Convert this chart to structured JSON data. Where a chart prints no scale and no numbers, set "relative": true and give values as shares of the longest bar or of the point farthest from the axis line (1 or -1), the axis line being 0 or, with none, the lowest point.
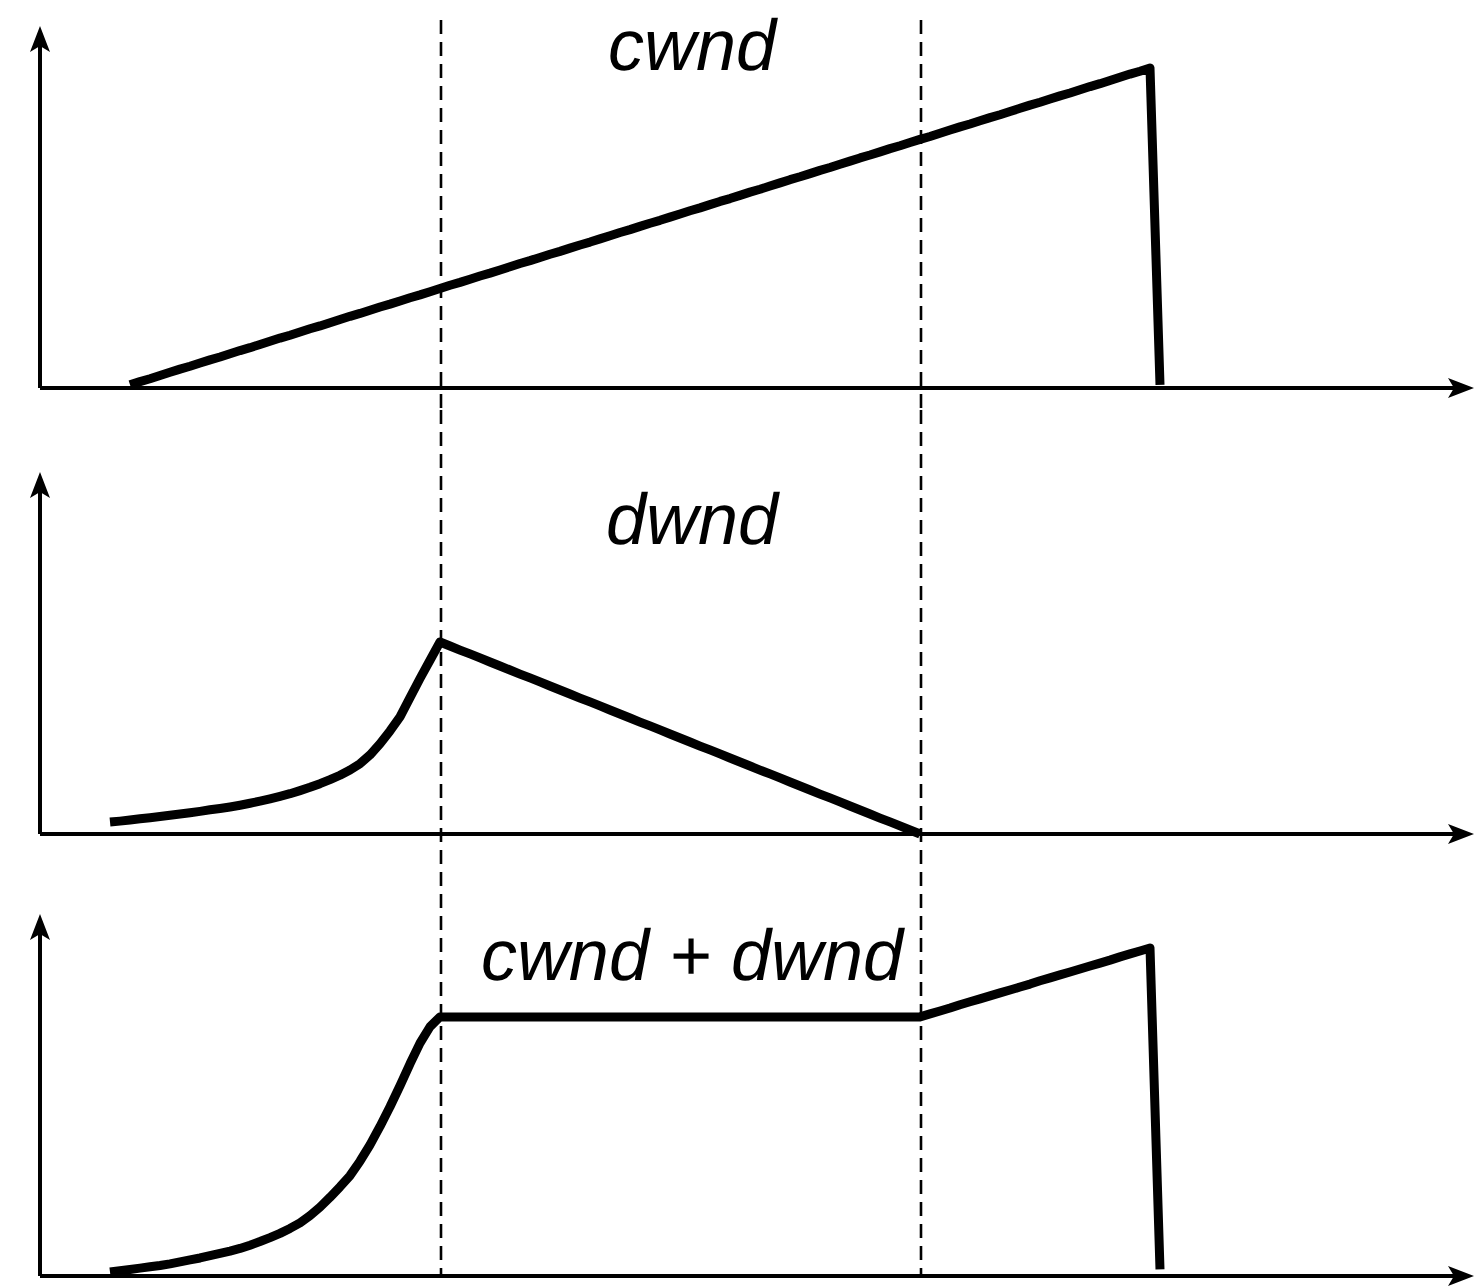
{
  "chart_data": [
    {
      "type": "line",
      "title": "cwnd",
      "relative": true,
      "tick_labels": false,
      "marker": "none",
      "color": "#000000",
      "categories": [
        null,
        null,
        null,
        null,
        null,
        null,
        null,
        null,
        null,
        null,
        null,
        null,
        null,
        null,
        null,
        null,
        null,
        null,
        null,
        null,
        null,
        null,
        null,
        null,
        null,
        null,
        null,
        null,
        null,
        null,
        null,
        null,
        null,
        null,
        null,
        null,
        null,
        null,
        null,
        null,
        null,
        null,
        null,
        null,
        null,
        null,
        null,
        null,
        null,
        null,
        null,
        null,
        null,
        null,
        null,
        null,
        null,
        null,
        null,
        null,
        null,
        null,
        null,
        null,
        null,
        null,
        null,
        null,
        null,
        null,
        null,
        null,
        null,
        null,
        null,
        null,
        null,
        null,
        null,
        null,
        null,
        null,
        null,
        null,
        null,
        null,
        null,
        null,
        null,
        null,
        null,
        null,
        null,
        null,
        null,
        null,
        null,
        null,
        null,
        null,
        null,
        null,
        null,
        null,
        null,
        null,
        null,
        null,
        null,
        null,
        null,
        null,
        null,
        null,
        null,
        null,
        null,
        null,
        null,
        null,
        null,
        null,
        null,
        null,
        null,
        null,
        null,
        null,
        null,
        null,
        null,
        null,
        null,
        null,
        null,
        null,
        null,
        null,
        null,
        null,
        null,
        null,
        null,
        null
      ],
      "values": [
        null,
        null,
        null,
        null,
        null,
        null,
        null,
        null,
        null,
        0.01,
        0.02,
        0.029,
        0.039,
        0.049,
        0.059,
        0.068,
        0.078,
        0.088,
        0.097,
        0.107,
        0.117,
        0.126,
        0.136,
        0.146,
        0.156,
        0.165,
        0.175,
        0.185,
        0.194,
        0.204,
        0.214,
        0.224,
        0.233,
        0.243,
        0.253,
        0.262,
        0.272,
        0.282,
        0.291,
        0.301,
        0.311,
        0.321,
        0.33,
        0.34,
        0.35,
        0.359,
        0.369,
        0.379,
        0.389,
        0.398,
        0.408,
        0.418,
        0.427,
        0.437,
        0.447,
        0.456,
        0.466,
        0.476,
        0.486,
        0.495,
        0.505,
        0.515,
        0.524,
        0.534,
        0.544,
        0.554,
        0.563,
        0.573,
        0.583,
        0.592,
        0.602,
        0.612,
        0.621,
        0.631,
        0.641,
        0.651,
        0.66,
        0.67,
        0.68,
        0.689,
        0.699,
        0.709,
        0.719,
        0.728,
        0.738,
        0.748,
        0.757,
        0.767,
        0.777,
        0.786,
        0.796,
        0.806,
        0.816,
        0.825,
        0.835,
        0.845,
        0.854,
        0.864,
        0.874,
        0.884,
        0.893,
        0.903,
        0.913,
        0.922,
        0.932,
        0.942,
        0.951,
        0.961,
        0.971,
        0.981,
        0.99,
        1,
        0.01,
        null,
        null,
        null,
        null,
        null,
        null,
        null,
        null,
        null,
        null,
        null,
        null,
        null,
        null,
        null,
        null,
        null,
        null,
        null,
        null,
        null,
        null,
        null,
        null,
        null,
        null,
        null,
        null,
        null,
        null,
        null
      ]
    },
    {
      "type": "line",
      "title": "dwnd",
      "relative": true,
      "tick_labels": false,
      "marker": "none",
      "color": "#000000",
      "categories": [
        null,
        null,
        null,
        null,
        null,
        null,
        null,
        null,
        null,
        null,
        null,
        null,
        null,
        null,
        null,
        null,
        null,
        null,
        null,
        null,
        null,
        null,
        null,
        null,
        null,
        null,
        null,
        null,
        null,
        null,
        null,
        null,
        null,
        null,
        null,
        null,
        null,
        null,
        null,
        null,
        null,
        null,
        null,
        null,
        null,
        null,
        null,
        null,
        null,
        null,
        null,
        null,
        null,
        null,
        null,
        null,
        null,
        null,
        null,
        null,
        null,
        null,
        null,
        null,
        null,
        null,
        null,
        null,
        null,
        null,
        null,
        null,
        null,
        null,
        null,
        null,
        null,
        null,
        null,
        null,
        null,
        null,
        null,
        null,
        null,
        null,
        null,
        null,
        null,
        null,
        null,
        null,
        null,
        null,
        null,
        null,
        null,
        null,
        null,
        null,
        null,
        null,
        null,
        null,
        null,
        null,
        null,
        null,
        null,
        null,
        null,
        null,
        null,
        null,
        null,
        null,
        null,
        null,
        null,
        null,
        null,
        null,
        null,
        null,
        null,
        null,
        null,
        null,
        null,
        null,
        null,
        null,
        null,
        null,
        null,
        null,
        null,
        null,
        null,
        null,
        null,
        null,
        null,
        null
      ],
      "values": [
        null,
        null,
        null,
        null,
        null,
        null,
        null,
        0.062,
        0.067,
        0.073,
        0.079,
        0.085,
        0.091,
        0.098,
        0.104,
        0.111,
        0.118,
        0.126,
        0.133,
        0.141,
        0.15,
        0.16,
        0.171,
        0.183,
        0.196,
        0.21,
        0.226,
        0.243,
        0.262,
        0.283,
        0.306,
        0.333,
        0.366,
        0.412,
        0.47,
        0.537,
        0.61,
        0.71,
        0.81,
        0.905,
        1,
        0.979,
        0.958,
        0.938,
        0.917,
        0.896,
        0.875,
        0.854,
        0.833,
        0.813,
        0.792,
        0.771,
        0.75,
        0.729,
        0.708,
        0.688,
        0.667,
        0.646,
        0.625,
        0.604,
        0.583,
        0.563,
        0.542,
        0.521,
        0.5,
        0.479,
        0.458,
        0.438,
        0.417,
        0.396,
        0.375,
        0.354,
        0.333,
        0.313,
        0.292,
        0.271,
        0.25,
        0.229,
        0.208,
        0.188,
        0.167,
        0.146,
        0.125,
        0.104,
        0.083,
        0.063,
        0.042,
        0.021,
        0,
        null,
        null,
        null,
        null,
        null,
        null,
        null,
        null,
        null,
        null,
        null,
        null,
        null,
        null,
        null,
        null,
        null,
        null,
        null,
        null,
        null,
        null,
        null,
        null,
        null,
        null,
        null,
        null,
        null,
        null,
        null,
        null,
        null,
        null,
        null,
        null,
        null,
        null,
        null,
        null,
        null,
        null,
        null,
        null,
        null,
        null,
        null,
        null,
        null,
        null,
        null,
        null,
        null,
        null,
        null
      ]
    },
    {
      "type": "line",
      "title": "cwnd + dwnd",
      "relative": true,
      "tick_labels": false,
      "marker": "none",
      "color": "#000000",
      "categories": [
        null,
        null,
        null,
        null,
        null,
        null,
        null,
        null,
        null,
        null,
        null,
        null,
        null,
        null,
        null,
        null,
        null,
        null,
        null,
        null,
        null,
        null,
        null,
        null,
        null,
        null,
        null,
        null,
        null,
        null,
        null,
        null,
        null,
        null,
        null,
        null,
        null,
        null,
        null,
        null,
        null,
        null,
        null,
        null,
        null,
        null,
        null,
        null,
        null,
        null,
        null,
        null,
        null,
        null,
        null,
        null,
        null,
        null,
        null,
        null,
        null,
        null,
        null,
        null,
        null,
        null,
        null,
        null,
        null,
        null,
        null,
        null,
        null,
        null,
        null,
        null,
        null,
        null,
        null,
        null,
        null,
        null,
        null,
        null,
        null,
        null,
        null,
        null,
        null,
        null,
        null,
        null,
        null,
        null,
        null,
        null,
        null,
        null,
        null,
        null,
        null,
        null,
        null,
        null,
        null,
        null,
        null,
        null,
        null,
        null,
        null,
        null,
        null,
        null,
        null,
        null,
        null,
        null,
        null,
        null,
        null,
        null,
        null,
        null,
        null,
        null,
        null,
        null,
        null,
        null,
        null,
        null,
        null,
        null,
        null,
        null,
        null,
        null,
        null,
        null,
        null,
        null,
        null,
        null
      ],
      "values": [
        null,
        null,
        null,
        null,
        null,
        null,
        null,
        0.012,
        0.016,
        0.02,
        0.024,
        0.028,
        0.032,
        0.037,
        0.043,
        0.049,
        0.055,
        0.062,
        0.069,
        0.076,
        0.084,
        0.094,
        0.105,
        0.117,
        0.13,
        0.145,
        0.162,
        0.184,
        0.21,
        0.24,
        0.272,
        0.306,
        0.35,
        0.4,
        0.456,
        0.516,
        0.58,
        0.647,
        0.71,
        0.76,
        0.79,
        0.79,
        0.79,
        0.79,
        0.79,
        0.79,
        0.79,
        0.79,
        0.79,
        0.79,
        0.79,
        0.79,
        0.79,
        0.79,
        0.79,
        0.79,
        0.79,
        0.79,
        0.79,
        0.79,
        0.79,
        0.79,
        0.79,
        0.79,
        0.79,
        0.79,
        0.79,
        0.79,
        0.79,
        0.79,
        0.79,
        0.79,
        0.79,
        0.79,
        0.79,
        0.79,
        0.79,
        0.79,
        0.79,
        0.79,
        0.79,
        0.79,
        0.79,
        0.79,
        0.79,
        0.79,
        0.79,
        0.79,
        0.79,
        0.799,
        0.808,
        0.817,
        0.827,
        0.836,
        0.845,
        0.854,
        0.863,
        0.872,
        0.881,
        0.89,
        0.9,
        0.909,
        0.918,
        0.927,
        0.936,
        0.945,
        0.954,
        0.963,
        0.973,
        0.982,
        0.991,
        1,
        0.02,
        null,
        null,
        null,
        null,
        null,
        null,
        null,
        null,
        null,
        null,
        null,
        null,
        null,
        null,
        null,
        null,
        null,
        null,
        null,
        null,
        null,
        null,
        null,
        null,
        null,
        null,
        null,
        null,
        null,
        null,
        null
      ]
    }
  ]
}
